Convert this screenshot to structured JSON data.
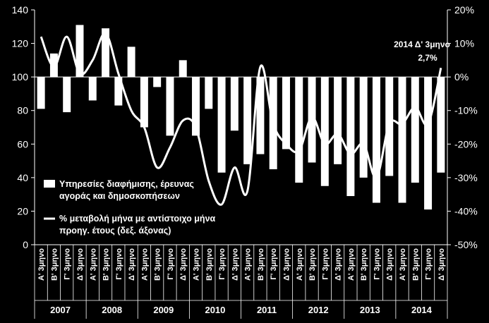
{
  "chart_data": {
    "type": "bar",
    "years": [
      "2007",
      "2008",
      "2009",
      "2010",
      "2011",
      "2012",
      "2013",
      "2014"
    ],
    "quarter_labels": [
      "Α' 3μηνο",
      "Β' 3μηνο",
      "Γ' 3μηνο",
      "Δ' 3μηνο"
    ],
    "left_axis": {
      "min": 0,
      "max": 140,
      "ticks": [
        "0",
        "20",
        "40",
        "60",
        "80",
        "100",
        "120",
        "140"
      ]
    },
    "right_axis": {
      "min": -50,
      "max": 20,
      "ticks": [
        "-50%",
        "-40%",
        "-30%",
        "-20%",
        "-10%",
        "0%",
        "10%",
        "20%"
      ]
    },
    "series": [
      {
        "name": "Υπηρεσίες διαφήμισης, έρευνας αγοράς και δημοσκοπήσεων",
        "kind": "bar",
        "axis": "left",
        "color": "#ffffff",
        "values": [
          81,
          114,
          79,
          131,
          86,
          129,
          83,
          118,
          70,
          94,
          65,
          110,
          65,
          81,
          43,
          68,
          48,
          54,
          45,
          57,
          37,
          49,
          35,
          48,
          29,
          40,
          25,
          41,
          25,
          37,
          21,
          43
        ]
      },
      {
        "name": "% μεταβολή μήνα με αντίστοιχο μήνα προηγ. έτους (δεξ. άξονας)",
        "kind": "line",
        "axis": "right",
        "color": "#ffffff",
        "values": [
          12,
          3,
          12,
          1,
          5,
          13,
          1,
          -10,
          -15,
          -27,
          -21,
          -13,
          -15,
          -31,
          -38,
          -27,
          -34,
          3,
          -14,
          -20,
          -22,
          -12,
          -20,
          -17,
          -23,
          -20,
          -30,
          -14,
          -14,
          -9,
          -14,
          2.7
        ]
      }
    ],
    "legend": {
      "bar_label_lines": [
        "Υπηρεσίες διαφήμισης, έρευνας",
        "αγοράς και δημοσκοπήσεων"
      ],
      "line_label_lines": [
        "% μεταβολή μήνα με αντίστοιχο μήνα",
        "προηγ. έτους (δεξ. άξονας)"
      ]
    },
    "annotation": {
      "title": "2014 Δ' 3μηνο",
      "value": "2,7%"
    },
    "grid": false,
    "legend_placement": "left-middle"
  }
}
